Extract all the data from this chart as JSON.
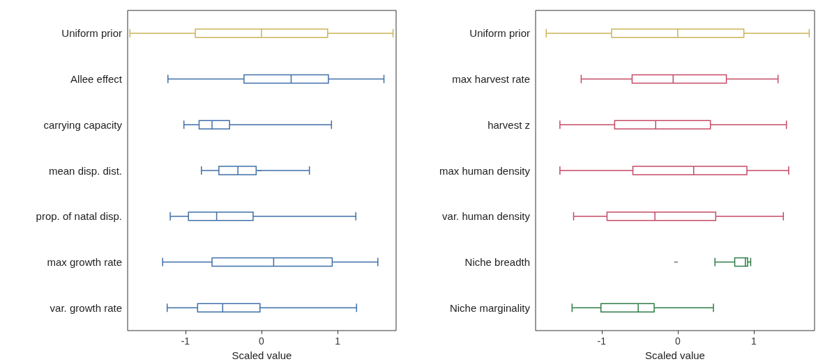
{
  "chart_data": [
    {
      "type": "box",
      "orientation": "horizontal",
      "xlabel": "Scaled value",
      "categories": [
        "Uniform prior",
        "Allee effect",
        "carrying capacity",
        "mean disp. dist.",
        "prop. of natal disp.",
        "max growth rate",
        "var. growth rate"
      ],
      "xlim": [
        -1.76,
        1.77
      ],
      "xticks": [
        -1,
        0,
        1
      ],
      "grid": false,
      "series": [
        {
          "color": "#c9b458",
          "boxes": [
            {
              "low": -1.73,
              "q1": -0.87,
              "median": 0,
              "q3": 0.87,
              "high": 1.73
            },
            null,
            null,
            null,
            null,
            null,
            null
          ]
        },
        {
          "color": "#3f6fa8",
          "boxes": [
            null,
            {
              "low": -1.23,
              "q1": -0.23,
              "median": 0.39,
              "q3": 0.88,
              "high": 1.61
            },
            {
              "low": -1.02,
              "q1": -0.82,
              "median": -0.65,
              "q3": -0.42,
              "high": 0.92
            },
            {
              "low": -0.79,
              "q1": -0.56,
              "median": -0.31,
              "q3": -0.07,
              "high": 0.63
            },
            {
              "low": -1.2,
              "q1": -0.96,
              "median": -0.59,
              "q3": -0.11,
              "high": 1.24
            },
            {
              "low": -1.3,
              "q1": -0.65,
              "median": 0.16,
              "q3": 0.93,
              "high": 1.53
            },
            {
              "low": -1.24,
              "q1": -0.84,
              "median": -0.51,
              "q3": -0.02,
              "high": 1.25
            }
          ]
        }
      ]
    },
    {
      "type": "box",
      "orientation": "horizontal",
      "xlabel": "Scaled value",
      "categories": [
        "Uniform prior",
        "max harvest rate",
        "harvest z",
        "max human density",
        "var. human density",
        "Niche breadth",
        "Niche marginality"
      ],
      "xlim": [
        -1.87,
        1.8
      ],
      "xticks": [
        -1,
        0,
        1
      ],
      "grid": false,
      "series": [
        {
          "color": "#c9b458",
          "boxes": [
            {
              "low": -1.73,
              "q1": -0.87,
              "median": 0,
              "q3": 0.87,
              "high": 1.73
            },
            null,
            null,
            null,
            null,
            null,
            null
          ]
        },
        {
          "color": "#c54a66",
          "boxes": [
            null,
            {
              "low": -1.27,
              "q1": -0.6,
              "median": -0.06,
              "q3": 0.64,
              "high": 1.32
            },
            {
              "low": -1.55,
              "q1": -0.83,
              "median": -0.29,
              "q3": 0.43,
              "high": 1.43
            },
            {
              "low": -1.55,
              "q1": -0.59,
              "median": 0.21,
              "q3": 0.91,
              "high": 1.46
            },
            {
              "low": -1.37,
              "q1": -0.93,
              "median": -0.3,
              "q3": 0.5,
              "high": 1.39
            },
            null,
            null
          ]
        },
        {
          "color": "#2e7d46",
          "boxes": [
            null,
            null,
            null,
            null,
            null,
            {
              "low": 0.49,
              "q1": 0.75,
              "median": 0.89,
              "q3": 0.92,
              "high": 0.96
            },
            {
              "low": -1.39,
              "q1": -1.01,
              "median": -0.52,
              "q3": -0.31,
              "high": 0.47
            }
          ]
        }
      ]
    }
  ]
}
